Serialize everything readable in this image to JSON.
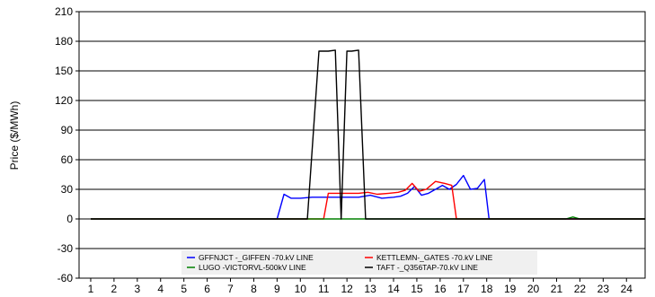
{
  "chart_data": {
    "type": "line",
    "title": "",
    "xlabel": "",
    "ylabel": "Price ($/MWh)",
    "ylim": [
      -60,
      210
    ],
    "xlim": [
      0.5,
      24.8
    ],
    "yticks": [
      -60,
      -30,
      0,
      30,
      60,
      90,
      120,
      150,
      180,
      210
    ],
    "xticks": [
      "1",
      "2",
      "3",
      "4",
      "5",
      "6",
      "7",
      "8",
      "9",
      "10",
      "11",
      "12",
      "13",
      "14",
      "15",
      "16",
      "17",
      "18",
      "19",
      "20",
      "21",
      "22",
      "23",
      "24"
    ],
    "grid": "horizontal",
    "legend_position": "bottom-center",
    "series": [
      {
        "name": "GFFNJCT -_GIFFEN -70.kV LINE",
        "color": "#0000ff",
        "x": [
          1,
          9.0,
          9.3,
          9.6,
          10.0,
          10.5,
          11.0,
          11.5,
          12.0,
          12.5,
          13.0,
          13.5,
          14.0,
          14.3,
          14.6,
          14.9,
          15.2,
          15.5,
          15.8,
          16.1,
          16.4,
          16.7,
          17.0,
          17.3,
          17.6,
          17.9,
          18.1,
          24.8
        ],
        "y": [
          0,
          0,
          25,
          21,
          21,
          22,
          22,
          22,
          22,
          22,
          24,
          21,
          22,
          23,
          26,
          33,
          24,
          26,
          30,
          34,
          30,
          35,
          44,
          30,
          31,
          40,
          0,
          0
        ]
      },
      {
        "name": "KETTLEMN-_GATES -70.kV LINE",
        "color": "#ff0000",
        "x": [
          1,
          11.0,
          11.2,
          11.6,
          12.0,
          12.5,
          12.9,
          13.3,
          13.8,
          14.2,
          14.5,
          14.8,
          15.1,
          15.4,
          15.8,
          16.2,
          16.5,
          16.7,
          24.8
        ],
        "y": [
          0,
          0,
          26,
          26,
          26,
          26,
          27,
          25,
          26,
          27,
          29,
          36,
          28,
          30,
          38,
          36,
          34,
          0,
          0
        ]
      },
      {
        "name": "LUGO -VICTORVL-500kV LINE",
        "color": "#008000",
        "x": [
          1,
          21.4,
          21.7,
          22.0,
          24.8
        ],
        "y": [
          0,
          0,
          2,
          0,
          0
        ]
      },
      {
        "name": "TAFT -_Q356TAP-70.kV LINE",
        "color": "#000000",
        "x": [
          1,
          10.3,
          10.8,
          11.2,
          11.5,
          11.75,
          12.0,
          12.2,
          12.5,
          12.8,
          24.8
        ],
        "y": [
          0,
          0,
          170,
          170,
          171,
          0,
          170,
          170,
          171,
          0,
          0
        ]
      }
    ]
  }
}
